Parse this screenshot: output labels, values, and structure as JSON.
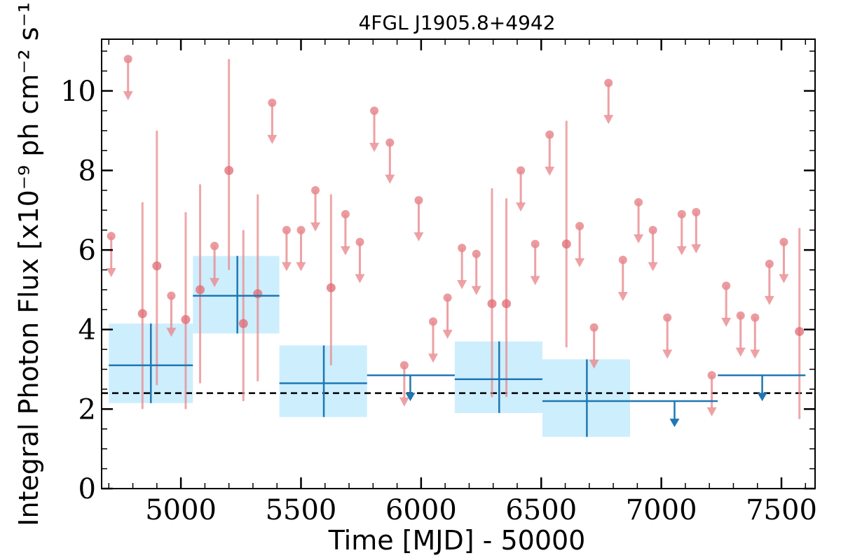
{
  "chart_data": {
    "type": "scatter",
    "title": "4FGL J1905.8+4942",
    "xlabel": "Time [MJD] - 50000",
    "ylabel": "Integral Photon Flux [x10⁻⁹ ph cm⁻² s⁻¹]",
    "xlim": [
      4670,
      7640
    ],
    "ylim": [
      0,
      11.3
    ],
    "x_ticks": [
      5000,
      5500,
      6000,
      6500,
      7000,
      7500
    ],
    "x_tick_labels": [
      "5000",
      "5500",
      "6000",
      "6500",
      "7000",
      "7500"
    ],
    "y_ticks": [
      0,
      2,
      4,
      6,
      8,
      10
    ],
    "y_tick_labels": [
      "0",
      "2",
      "4",
      "6",
      "8",
      "10"
    ],
    "grid": false,
    "reference_line": {
      "y": 2.4,
      "style": "dashed",
      "color": "#000000"
    },
    "series": [
      {
        "kind": "short_bins",
        "color": "#e88a8e",
        "detections": [
          {
            "x": 4840,
            "y": 4.4,
            "ylo": 2.0,
            "yhi": 7.2
          },
          {
            "x": 4900,
            "y": 5.6,
            "ylo": 2.6,
            "yhi": 9.0
          },
          {
            "x": 5020,
            "y": 4.25,
            "ylo": 2.0,
            "yhi": 6.95
          },
          {
            "x": 5080,
            "y": 5.0,
            "ylo": 2.65,
            "yhi": 7.65
          },
          {
            "x": 5200,
            "y": 8.0,
            "ylo": 5.5,
            "yhi": 10.8
          },
          {
            "x": 5260,
            "y": 4.15,
            "ylo": 2.2,
            "yhi": 6.5
          },
          {
            "x": 5320,
            "y": 4.9,
            "ylo": 2.7,
            "yhi": 7.4
          },
          {
            "x": 5625,
            "y": 5.05,
            "ylo": 3.1,
            "yhi": 7.4
          },
          {
            "x": 6295,
            "y": 4.65,
            "ylo": 2.3,
            "yhi": 7.55
          },
          {
            "x": 6355,
            "y": 4.65,
            "ylo": 2.3,
            "yhi": 7.3
          },
          {
            "x": 6605,
            "y": 6.15,
            "ylo": 3.55,
            "yhi": 9.25
          },
          {
            "x": 7575,
            "y": 3.95,
            "ylo": 1.75,
            "yhi": 6.55
          }
        ],
        "upper_limits": [
          {
            "x": 4710,
            "y": 6.35
          },
          {
            "x": 4780,
            "y": 10.8
          },
          {
            "x": 4960,
            "y": 4.85
          },
          {
            "x": 5140,
            "y": 6.1
          },
          {
            "x": 5380,
            "y": 9.7
          },
          {
            "x": 5440,
            "y": 6.5
          },
          {
            "x": 5500,
            "y": 6.5
          },
          {
            "x": 5560,
            "y": 7.5
          },
          {
            "x": 5685,
            "y": 6.9
          },
          {
            "x": 5745,
            "y": 6.2
          },
          {
            "x": 5805,
            "y": 9.5
          },
          {
            "x": 5870,
            "y": 8.7
          },
          {
            "x": 5930,
            "y": 3.1
          },
          {
            "x": 5990,
            "y": 7.25
          },
          {
            "x": 6050,
            "y": 4.2
          },
          {
            "x": 6110,
            "y": 4.8
          },
          {
            "x": 6170,
            "y": 6.05
          },
          {
            "x": 6230,
            "y": 5.9
          },
          {
            "x": 6415,
            "y": 8.0
          },
          {
            "x": 6475,
            "y": 6.15
          },
          {
            "x": 6535,
            "y": 8.9
          },
          {
            "x": 6660,
            "y": 6.6
          },
          {
            "x": 6720,
            "y": 4.05
          },
          {
            "x": 6780,
            "y": 10.2
          },
          {
            "x": 6840,
            "y": 5.75
          },
          {
            "x": 6905,
            "y": 7.2
          },
          {
            "x": 6965,
            "y": 6.5
          },
          {
            "x": 7025,
            "y": 4.3
          },
          {
            "x": 7085,
            "y": 6.9
          },
          {
            "x": 7145,
            "y": 6.95
          },
          {
            "x": 7210,
            "y": 2.85
          },
          {
            "x": 7270,
            "y": 5.1
          },
          {
            "x": 7330,
            "y": 4.35
          },
          {
            "x": 7390,
            "y": 4.3
          },
          {
            "x": 7450,
            "y": 5.65
          },
          {
            "x": 7510,
            "y": 6.2
          }
        ]
      },
      {
        "kind": "long_bins",
        "color": "#1f77b4",
        "band_color": "#cdeefd",
        "detections": [
          {
            "x": 4875,
            "xlo": 4700,
            "xhi": 5050,
            "y": 3.1,
            "ylo": 2.15,
            "yhi": 4.15
          },
          {
            "x": 5235,
            "xlo": 5050,
            "xhi": 5410,
            "y": 4.85,
            "ylo": 3.9,
            "yhi": 5.85
          },
          {
            "x": 5595,
            "xlo": 5410,
            "xhi": 5775,
            "y": 2.65,
            "ylo": 1.8,
            "yhi": 3.6
          },
          {
            "x": 6325,
            "xlo": 6140,
            "xhi": 6505,
            "y": 2.75,
            "ylo": 1.9,
            "yhi": 3.7
          },
          {
            "x": 6690,
            "xlo": 6505,
            "xhi": 6870,
            "y": 2.2,
            "ylo": 1.3,
            "yhi": 3.25
          }
        ],
        "upper_limits": [
          {
            "x": 5955,
            "xlo": 5775,
            "xhi": 6140,
            "y": 2.85
          },
          {
            "x": 7055,
            "xlo": 6870,
            "xhi": 7235,
            "y": 2.2
          },
          {
            "x": 7420,
            "xlo": 7235,
            "xhi": 7600,
            "y": 2.85
          }
        ]
      }
    ]
  }
}
